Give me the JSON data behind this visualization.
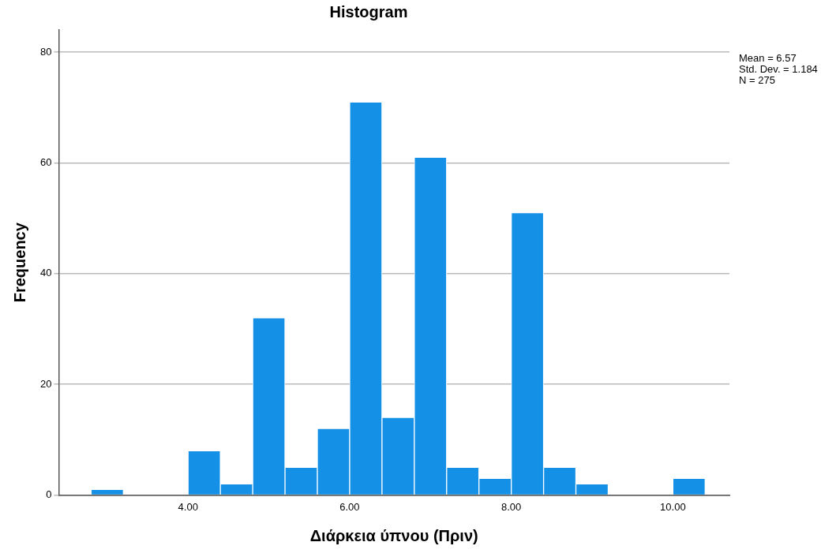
{
  "chart_data": {
    "type": "histogram",
    "title": "Histogram",
    "xlabel": "Διάρκεια ύπνου (Πριν)",
    "ylabel": "Frequency",
    "bins": [
      2.8,
      3.2,
      3.6,
      4.0,
      4.4,
      4.8,
      5.2,
      5.6,
      6.0,
      6.4,
      6.8,
      7.2,
      7.6,
      8.0,
      8.4,
      8.8,
      9.2,
      9.6,
      10.0,
      10.4
    ],
    "values": [
      1,
      0,
      0,
      8,
      2,
      32,
      5,
      12,
      71,
      14,
      61,
      5,
      3,
      51,
      5,
      2,
      0,
      0,
      3
    ],
    "color": "#1490e6",
    "xlim": [
      2.4,
      10.7
    ],
    "xticks": [
      {
        "value": 4,
        "label": "4.00"
      },
      {
        "value": 6,
        "label": "6.00"
      },
      {
        "value": 8,
        "label": "8.00"
      },
      {
        "value": 10,
        "label": "10.00"
      }
    ],
    "ylim": [
      0,
      84
    ],
    "yticks": [
      0,
      20,
      40,
      60,
      80
    ],
    "grid": "y",
    "annotations": [
      "Mean = 6.57",
      "Std. Dev. = 1.184",
      "N = 275"
    ]
  }
}
